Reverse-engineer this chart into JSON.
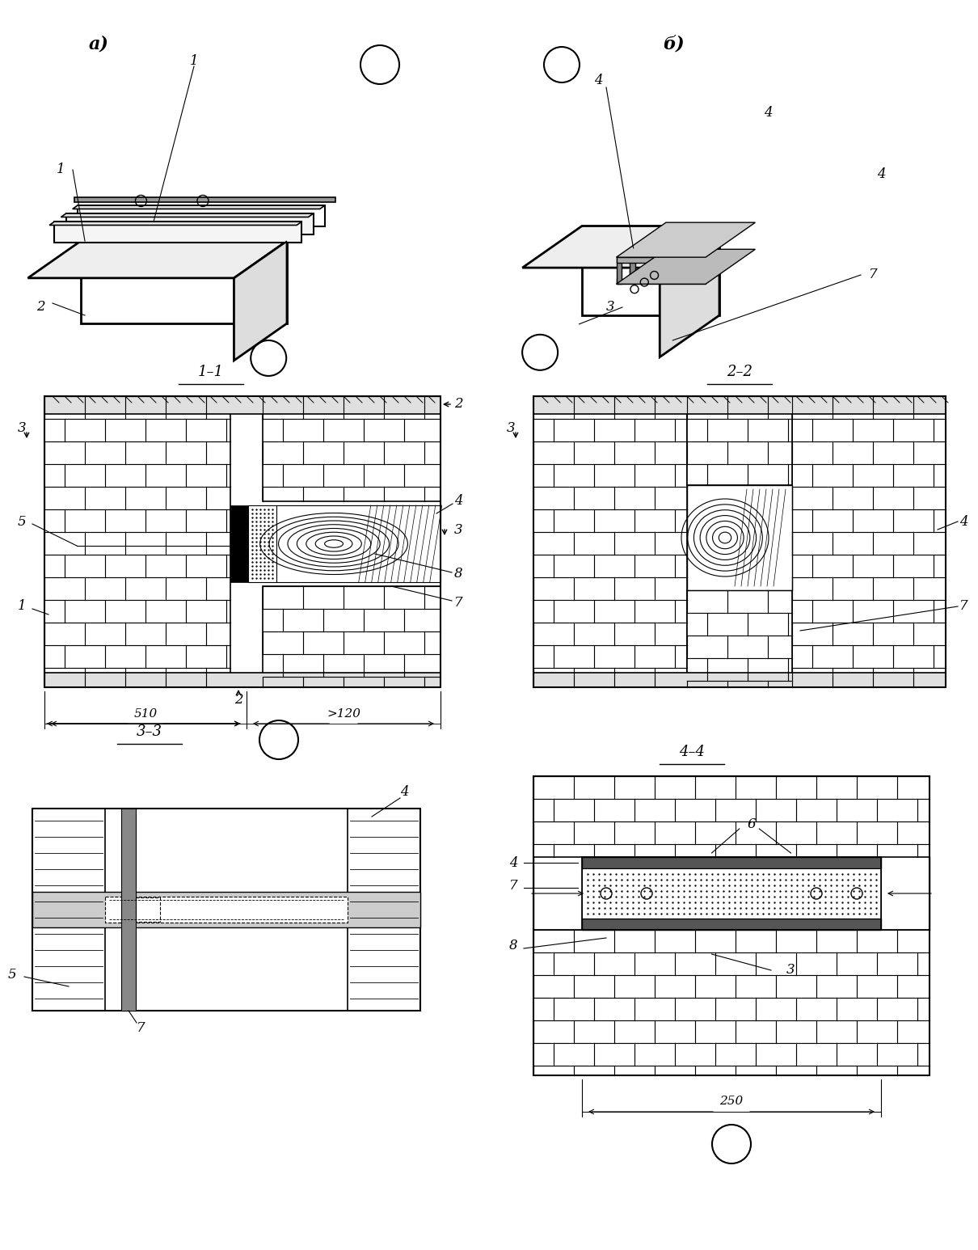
{
  "bg_color": "#ffffff",
  "line_color": "#000000",
  "label_a": "a)",
  "label_b": "б)",
  "section_11": "1–1",
  "section_22": "2–2",
  "section_33": "3–3",
  "section_44": "4–4",
  "dim_510": "510",
  "dim_120": ">120",
  "dim_250": "250"
}
